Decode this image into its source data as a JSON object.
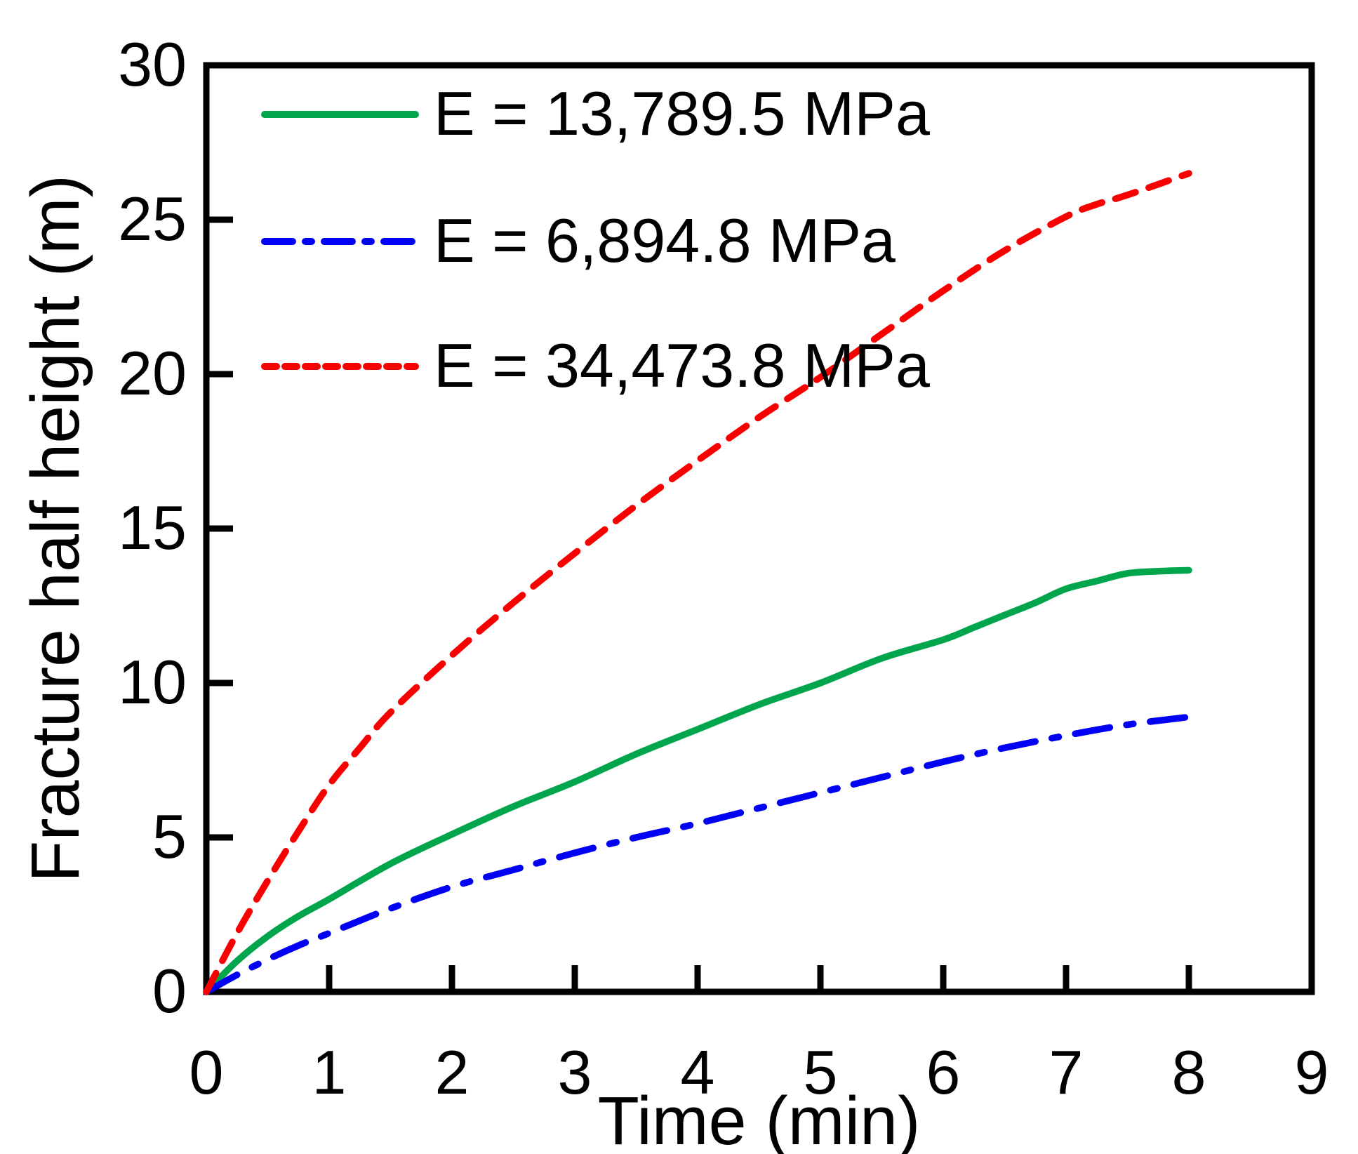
{
  "chart_data": {
    "type": "line",
    "title": "",
    "xlabel": "Time (min)",
    "ylabel": "Fracture half height (m)",
    "xlim": [
      0,
      9
    ],
    "ylim": [
      0,
      30
    ],
    "x_ticks": [
      0,
      1,
      2,
      3,
      4,
      5,
      6,
      7,
      8,
      9
    ],
    "y_ticks": [
      0,
      5,
      10,
      15,
      20,
      25,
      30
    ],
    "grid": false,
    "frame": true,
    "tick_direction": "in",
    "legend_position": "top-left-inside",
    "axis_color": "#000000",
    "background_color": "#FFFFFF",
    "series": [
      {
        "name": "E = 13,789.5 MPa",
        "color": "#00A54C",
        "line_style": "solid",
        "points": [
          [
            0,
            0
          ],
          [
            0.25,
            1.0
          ],
          [
            0.5,
            1.8
          ],
          [
            0.75,
            2.45
          ],
          [
            1,
            3.0
          ],
          [
            1.5,
            4.15
          ],
          [
            2,
            5.1
          ],
          [
            2.5,
            6.0
          ],
          [
            3,
            6.8
          ],
          [
            3.5,
            7.7
          ],
          [
            4,
            8.5
          ],
          [
            4.5,
            9.3
          ],
          [
            5,
            10.0
          ],
          [
            5.5,
            10.8
          ],
          [
            6,
            11.4
          ],
          [
            6.25,
            11.8
          ],
          [
            6.5,
            12.2
          ],
          [
            6.75,
            12.6
          ],
          [
            7,
            13.05
          ],
          [
            7.25,
            13.3
          ],
          [
            7.5,
            13.55
          ],
          [
            7.75,
            13.62
          ],
          [
            8,
            13.65
          ]
        ]
      },
      {
        "name": "E = 6,894.8 MPa",
        "color": "#0000F5",
        "line_style": "dash-dot",
        "points": [
          [
            0,
            0
          ],
          [
            0.25,
            0.55
          ],
          [
            0.5,
            1.05
          ],
          [
            0.75,
            1.5
          ],
          [
            1,
            1.9
          ],
          [
            1.5,
            2.7
          ],
          [
            2,
            3.4
          ],
          [
            2.5,
            3.95
          ],
          [
            3,
            4.5
          ],
          [
            3.5,
            5.0
          ],
          [
            4,
            5.45
          ],
          [
            4.5,
            5.95
          ],
          [
            5,
            6.45
          ],
          [
            5.5,
            6.95
          ],
          [
            6,
            7.45
          ],
          [
            6.5,
            7.9
          ],
          [
            7,
            8.3
          ],
          [
            7.5,
            8.65
          ],
          [
            8,
            8.9
          ]
        ]
      },
      {
        "name": "E = 34,473.8 MPa",
        "color": "#F80000",
        "line_style": "dashed",
        "points": [
          [
            0,
            0
          ],
          [
            0.25,
            1.9
          ],
          [
            0.5,
            3.6
          ],
          [
            0.75,
            5.2
          ],
          [
            1,
            6.7
          ],
          [
            1.25,
            7.9
          ],
          [
            1.5,
            9.05
          ],
          [
            2,
            10.9
          ],
          [
            2.5,
            12.6
          ],
          [
            3,
            14.2
          ],
          [
            3.5,
            15.75
          ],
          [
            4,
            17.2
          ],
          [
            4.5,
            18.6
          ],
          [
            5,
            19.9
          ],
          [
            5.5,
            21.3
          ],
          [
            6,
            22.7
          ],
          [
            6.5,
            24.0
          ],
          [
            7,
            25.1
          ],
          [
            7.25,
            25.5
          ],
          [
            7.5,
            25.8
          ],
          [
            8,
            26.5
          ]
        ]
      }
    ]
  }
}
